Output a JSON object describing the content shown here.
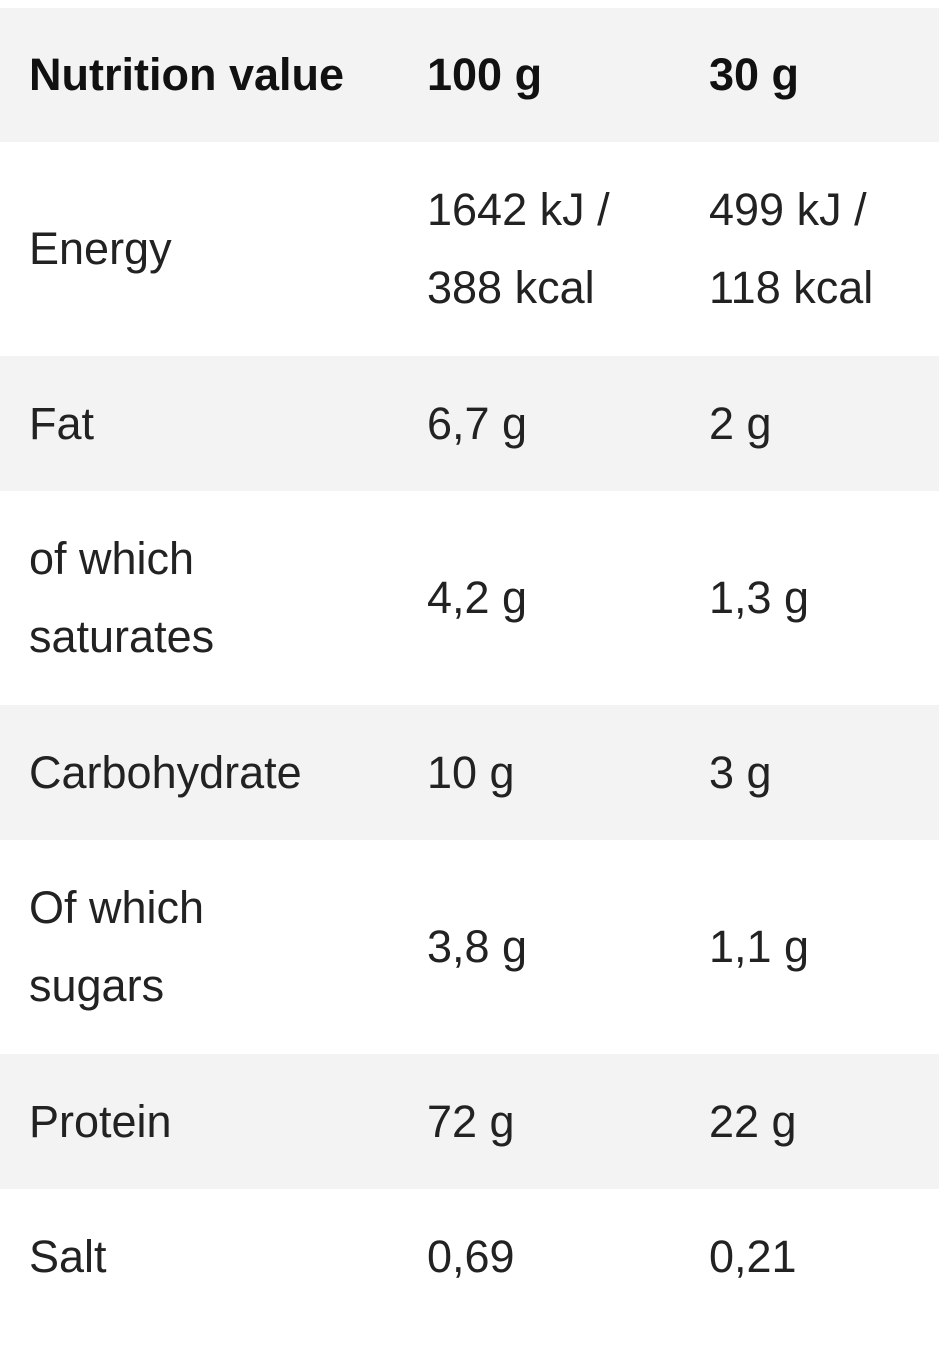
{
  "table": {
    "header": {
      "label": "Nutrition value",
      "col1": "100 g",
      "col2": "30 g"
    },
    "rows": [
      {
        "label": [
          "Energy"
        ],
        "v100": [
          "1642 kJ /",
          "388 kcal"
        ],
        "v30": [
          "499 kJ /",
          "118 kcal"
        ]
      },
      {
        "label": [
          "Fat"
        ],
        "v100": [
          "6,7 g"
        ],
        "v30": [
          "2 g"
        ]
      },
      {
        "label": [
          "of which",
          "saturates"
        ],
        "v100": [
          "4,2 g"
        ],
        "v30": [
          "1,3 g"
        ]
      },
      {
        "label": [
          "Carbohydrate"
        ],
        "v100": [
          "10 g"
        ],
        "v30": [
          "3 g"
        ]
      },
      {
        "label": [
          "Of which",
          "sugars"
        ],
        "v100": [
          "3,8 g"
        ],
        "v30": [
          "1,1 g"
        ]
      },
      {
        "label": [
          "Protein"
        ],
        "v100": [
          "72 g"
        ],
        "v30": [
          "22 g"
        ]
      },
      {
        "label": [
          "Salt"
        ],
        "v100": [
          "0,69"
        ],
        "v30": [
          "0,21"
        ]
      }
    ]
  }
}
